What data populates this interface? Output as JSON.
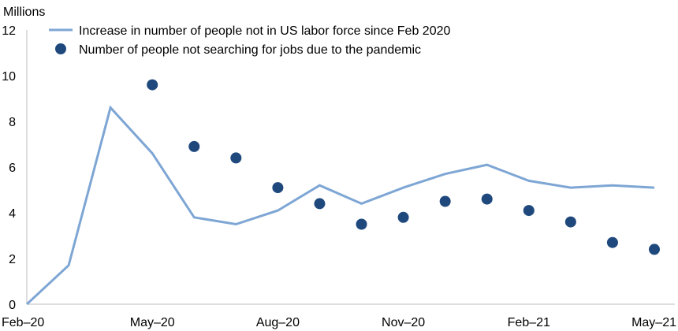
{
  "chart_data": {
    "type": "line",
    "title": "",
    "ylabel": "Millions",
    "xlabel": "",
    "ylim": [
      0,
      12
    ],
    "yticks": [
      "0",
      "2",
      "4",
      "6",
      "8",
      "10",
      "12"
    ],
    "categories": [
      "Feb–20",
      "Mar–20",
      "Apr–20",
      "May–20",
      "Jun–20",
      "Jul–20",
      "Aug–20",
      "Sep–20",
      "Oct–20",
      "Nov–20",
      "Dec–20",
      "Jan–21",
      "Feb–21",
      "Mar–21",
      "Apr–21",
      "May–21"
    ],
    "xtick_labels": [
      "Feb–20",
      "May–20",
      "Aug–20",
      "Nov–20",
      "Feb–21",
      "May–21"
    ],
    "grid": false,
    "legend_position": "top-left",
    "series": [
      {
        "name": "Increase in number of people not in US labor force since Feb 2020",
        "kind": "line",
        "color": "#7ea6d4",
        "values": [
          0,
          1.7,
          8.6,
          6.6,
          3.8,
          3.5,
          4.1,
          5.2,
          4.4,
          5.1,
          5.7,
          6.1,
          5.4,
          5.1,
          5.2,
          5.1
        ]
      },
      {
        "name": "Number of people not searching for jobs due to the pandemic",
        "kind": "scatter",
        "color": "#1f497d",
        "values": [
          null,
          null,
          null,
          9.6,
          6.9,
          6.4,
          5.1,
          4.4,
          3.5,
          3.8,
          4.5,
          4.6,
          4.1,
          3.6,
          2.7,
          2.4
        ]
      }
    ]
  }
}
